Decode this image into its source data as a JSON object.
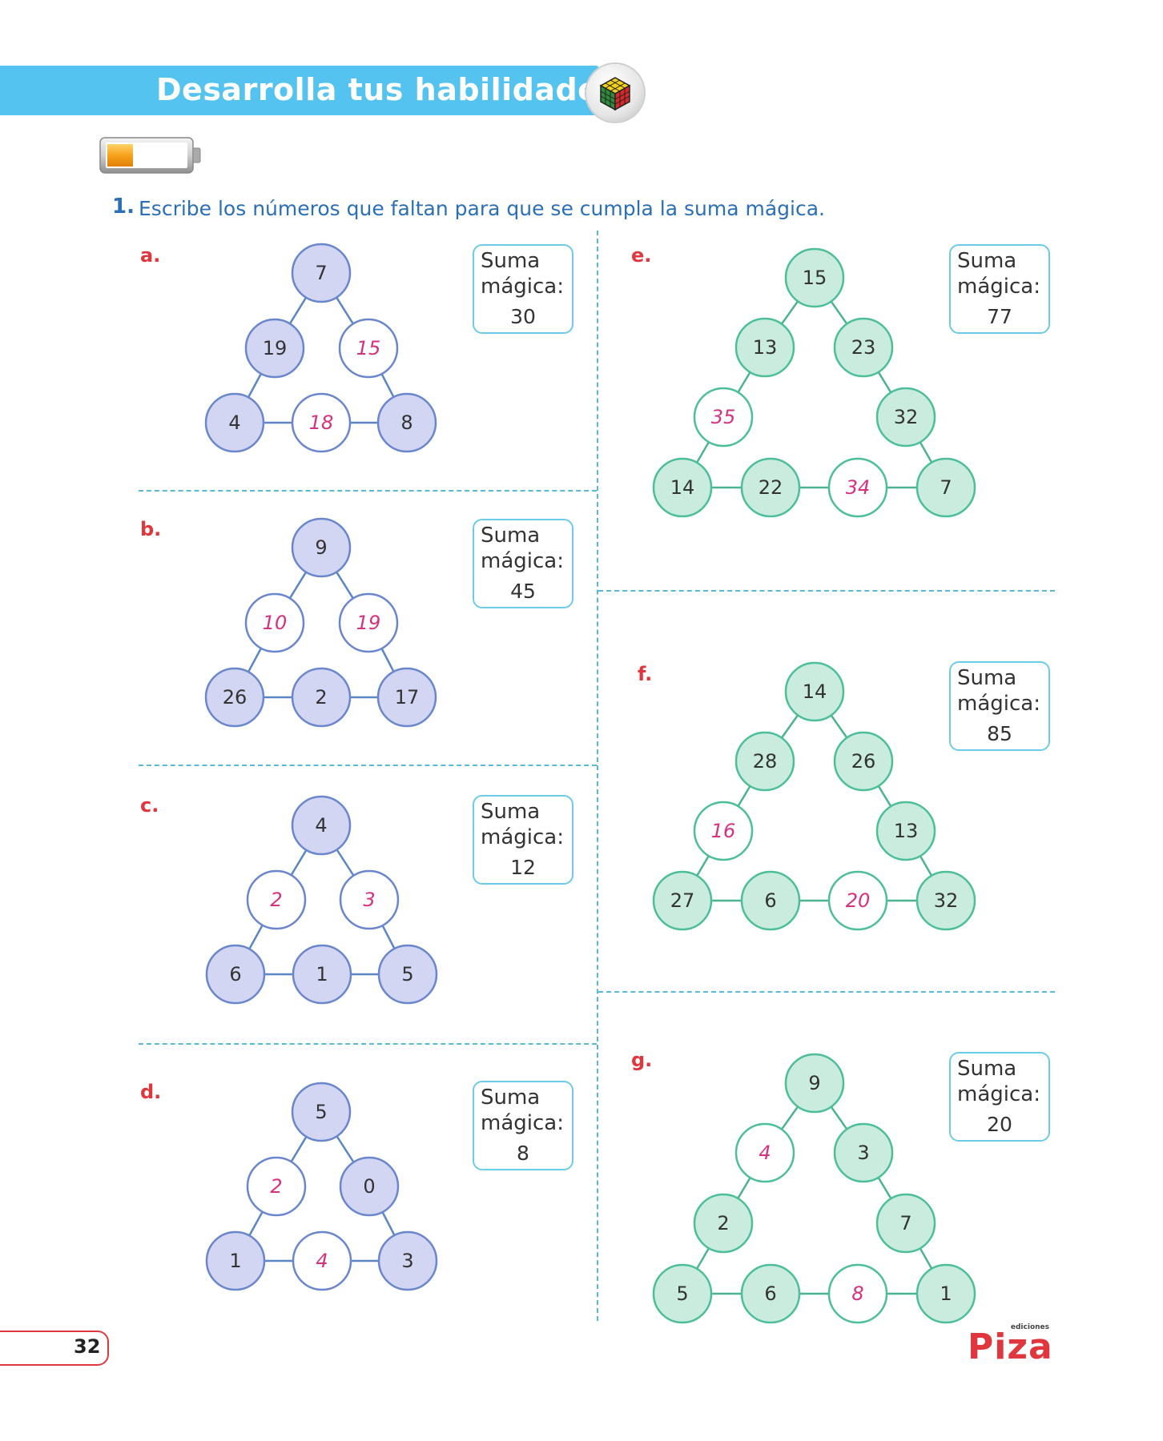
{
  "header": {
    "title": "Desarrolla tus habilidades",
    "cube_icon": "rubik-cube-icon",
    "battery_icon": "battery-icon"
  },
  "instruction": {
    "number": "1.",
    "text": "Escribe los números que faltan para que se cumpla la suma mágica."
  },
  "suma_line1": "Suma",
  "suma_line2": "mágica:",
  "exercises": [
    {
      "label": "a.",
      "magic_sum": "30",
      "nodes": [
        "7",
        "19",
        "15",
        "4",
        "18",
        "8"
      ],
      "answers": [
        false,
        false,
        true,
        false,
        true,
        false
      ]
    },
    {
      "label": "b.",
      "magic_sum": "45",
      "nodes": [
        "9",
        "10",
        "19",
        "26",
        "2",
        "17"
      ],
      "answers": [
        false,
        true,
        true,
        false,
        false,
        false
      ]
    },
    {
      "label": "c.",
      "magic_sum": "12",
      "nodes": [
        "4",
        "2",
        "3",
        "6",
        "1",
        "5"
      ],
      "answers": [
        false,
        true,
        true,
        false,
        false,
        false
      ]
    },
    {
      "label": "d.",
      "magic_sum": "8",
      "nodes": [
        "5",
        "2",
        "0",
        "1",
        "4",
        "3"
      ],
      "answers": [
        false,
        true,
        false,
        false,
        true,
        false
      ]
    },
    {
      "label": "e.",
      "magic_sum": "77",
      "nodes": [
        "15",
        "13",
        "23",
        "35",
        "32",
        "14",
        "22",
        "34",
        "7"
      ],
      "answers": [
        false,
        false,
        false,
        true,
        false,
        false,
        false,
        true,
        false
      ]
    },
    {
      "label": "f.",
      "magic_sum": "85",
      "nodes": [
        "14",
        "28",
        "26",
        "16",
        "13",
        "27",
        "6",
        "20",
        "32"
      ],
      "answers": [
        false,
        false,
        false,
        true,
        false,
        false,
        false,
        true,
        false
      ]
    },
    {
      "label": "g.",
      "magic_sum": "20",
      "nodes": [
        "9",
        "4",
        "3",
        "2",
        "7",
        "5",
        "6",
        "8",
        "1"
      ],
      "answers": [
        false,
        true,
        false,
        false,
        false,
        false,
        false,
        true,
        false
      ]
    }
  ],
  "footer": {
    "page_number": "32",
    "publisher_small": "ediciones",
    "publisher_name": "Piza"
  }
}
